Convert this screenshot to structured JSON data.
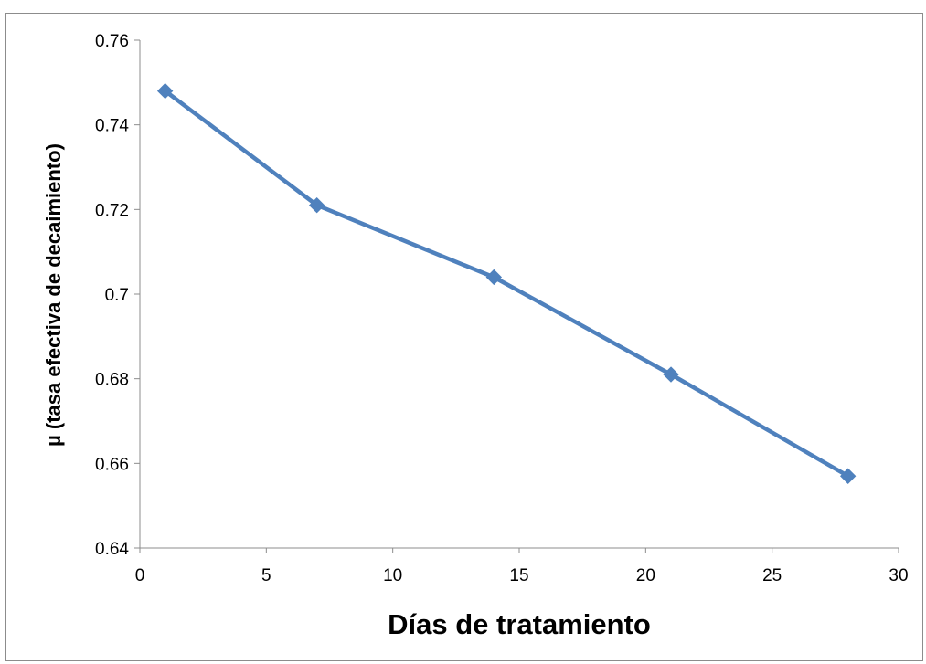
{
  "chart_data": {
    "type": "line",
    "title": "",
    "xlabel": "Días de tratamiento",
    "ylabel": "µ (tasa efectiva de decaimiento)",
    "xlim": [
      0,
      30
    ],
    "ylim": [
      0.64,
      0.76
    ],
    "x_ticks": [
      0,
      5,
      10,
      15,
      20,
      25,
      30
    ],
    "x_tick_labels": [
      "0",
      "5",
      "10",
      "15",
      "20",
      "25",
      "30"
    ],
    "y_ticks": [
      0.64,
      0.66,
      0.68,
      0.7,
      0.72,
      0.74,
      0.76
    ],
    "y_tick_labels": [
      "0.64",
      "0.66",
      "0.68",
      "0.7",
      "0.72",
      "0.74",
      "0.76"
    ],
    "grid": false,
    "legend": "none",
    "series": [
      {
        "x": [
          1,
          7,
          14,
          21,
          28
        ],
        "y": [
          0.748,
          0.721,
          0.704,
          0.681,
          0.657
        ],
        "color": "#4f81bd",
        "marker": "diamond"
      }
    ]
  }
}
